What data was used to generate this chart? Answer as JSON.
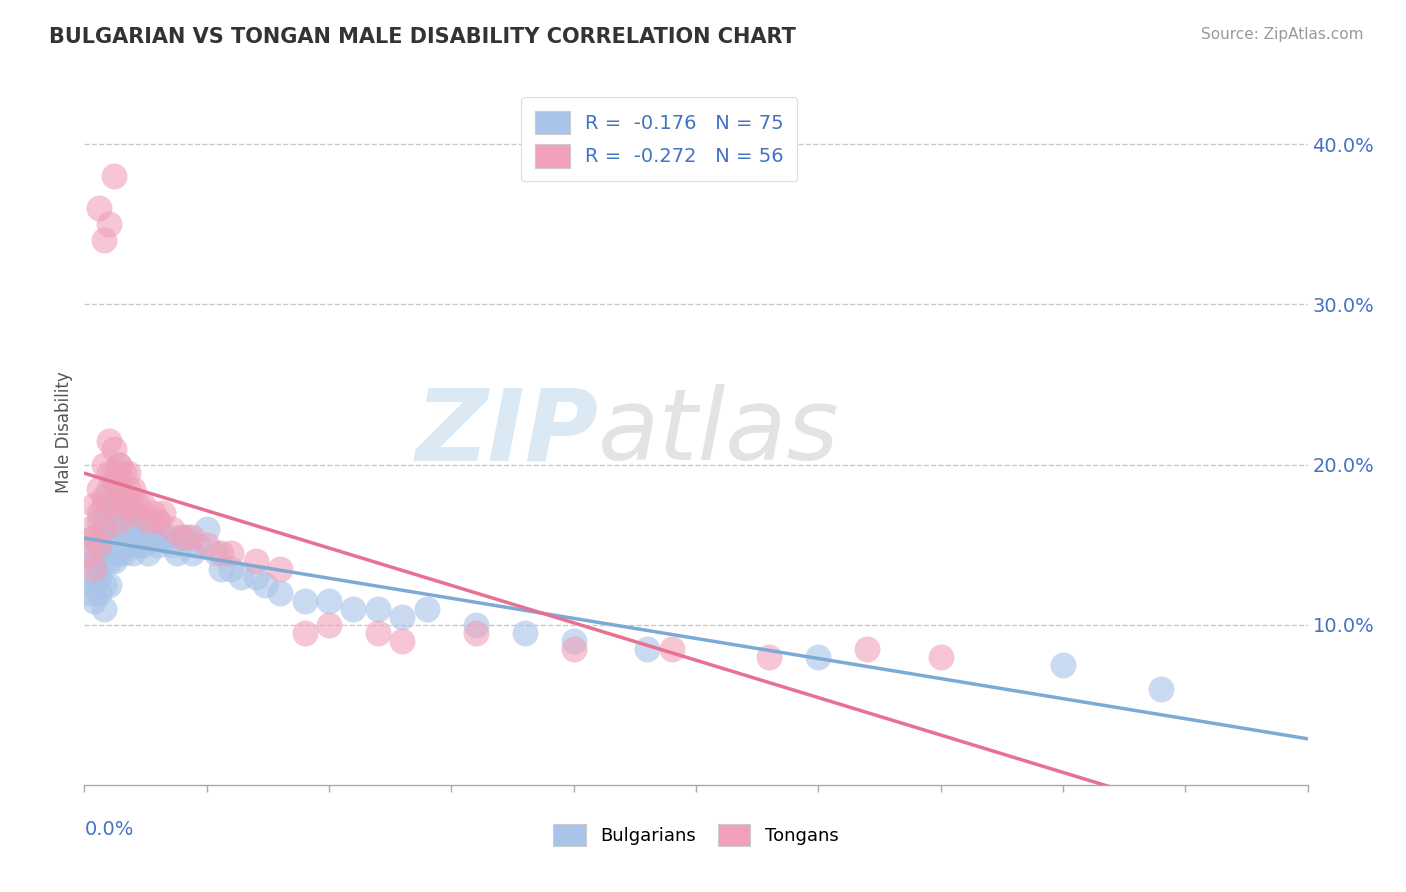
{
  "title": "BULGARIAN VS TONGAN MALE DISABILITY CORRELATION CHART",
  "source": "Source: ZipAtlas.com",
  "ylabel": "Male Disability",
  "xmin": 0.0,
  "xmax": 0.25,
  "ymin": 0.0,
  "ymax": 0.44,
  "yticks": [
    0.1,
    0.2,
    0.3,
    0.4
  ],
  "xticks": [
    0.0,
    0.025,
    0.05,
    0.075,
    0.1,
    0.125,
    0.15,
    0.175,
    0.2,
    0.225,
    0.25
  ],
  "bulgarian_color": "#a8c4e8",
  "tongan_color": "#f0a0b8",
  "bulgarian_line_color": "#7baad4",
  "tongan_line_color": "#e87090",
  "legend_label_blue": "R =  -0.176   N = 75",
  "legend_label_pink": "R =  -0.272   N = 56",
  "bottom_legend_blue": "Bulgarians",
  "bottom_legend_pink": "Tongans",
  "watermark_zip": "ZIP",
  "watermark_atlas": "atlas",
  "bulgarian_x": [
    0.001,
    0.001,
    0.001,
    0.002,
    0.002,
    0.002,
    0.002,
    0.003,
    0.003,
    0.003,
    0.003,
    0.004,
    0.004,
    0.004,
    0.004,
    0.004,
    0.005,
    0.005,
    0.005,
    0.005,
    0.005,
    0.006,
    0.006,
    0.006,
    0.006,
    0.007,
    0.007,
    0.007,
    0.007,
    0.008,
    0.008,
    0.008,
    0.009,
    0.009,
    0.01,
    0.01,
    0.01,
    0.011,
    0.011,
    0.012,
    0.012,
    0.013,
    0.013,
    0.014,
    0.015,
    0.015,
    0.016,
    0.017,
    0.018,
    0.019,
    0.02,
    0.021,
    0.022,
    0.023,
    0.025,
    0.027,
    0.028,
    0.03,
    0.032,
    0.035,
    0.037,
    0.04,
    0.045,
    0.05,
    0.055,
    0.06,
    0.065,
    0.07,
    0.08,
    0.09,
    0.1,
    0.115,
    0.15,
    0.2,
    0.22
  ],
  "bulgarian_y": [
    0.13,
    0.145,
    0.12,
    0.155,
    0.14,
    0.125,
    0.115,
    0.165,
    0.145,
    0.13,
    0.12,
    0.175,
    0.155,
    0.14,
    0.125,
    0.11,
    0.185,
    0.17,
    0.155,
    0.14,
    0.125,
    0.195,
    0.175,
    0.16,
    0.14,
    0.2,
    0.18,
    0.16,
    0.145,
    0.175,
    0.16,
    0.145,
    0.17,
    0.15,
    0.175,
    0.16,
    0.145,
    0.165,
    0.15,
    0.165,
    0.15,
    0.16,
    0.145,
    0.155,
    0.165,
    0.15,
    0.155,
    0.155,
    0.15,
    0.145,
    0.155,
    0.155,
    0.145,
    0.15,
    0.16,
    0.145,
    0.135,
    0.135,
    0.13,
    0.13,
    0.125,
    0.12,
    0.115,
    0.115,
    0.11,
    0.11,
    0.105,
    0.11,
    0.1,
    0.095,
    0.09,
    0.085,
    0.08,
    0.075,
    0.06
  ],
  "tongan_x": [
    0.001,
    0.001,
    0.002,
    0.002,
    0.002,
    0.003,
    0.003,
    0.003,
    0.004,
    0.004,
    0.004,
    0.005,
    0.005,
    0.005,
    0.006,
    0.006,
    0.007,
    0.007,
    0.007,
    0.008,
    0.008,
    0.009,
    0.009,
    0.01,
    0.01,
    0.011,
    0.012,
    0.013,
    0.014,
    0.015,
    0.016,
    0.018,
    0.02,
    0.022,
    0.025,
    0.028,
    0.03,
    0.035,
    0.04,
    0.045,
    0.05,
    0.06,
    0.065,
    0.08,
    0.1,
    0.12,
    0.14,
    0.16,
    0.175,
    0.005,
    0.003,
    0.004,
    0.006,
    0.007,
    0.008,
    0.009
  ],
  "tongan_y": [
    0.145,
    0.16,
    0.175,
    0.155,
    0.135,
    0.185,
    0.17,
    0.15,
    0.2,
    0.18,
    0.16,
    0.215,
    0.195,
    0.175,
    0.21,
    0.19,
    0.2,
    0.185,
    0.165,
    0.195,
    0.175,
    0.195,
    0.175,
    0.185,
    0.17,
    0.175,
    0.175,
    0.165,
    0.17,
    0.165,
    0.17,
    0.16,
    0.155,
    0.155,
    0.15,
    0.145,
    0.145,
    0.14,
    0.135,
    0.095,
    0.1,
    0.095,
    0.09,
    0.095,
    0.085,
    0.085,
    0.08,
    0.085,
    0.08,
    0.35,
    0.36,
    0.34,
    0.38,
    0.195,
    0.18,
    0.185
  ]
}
